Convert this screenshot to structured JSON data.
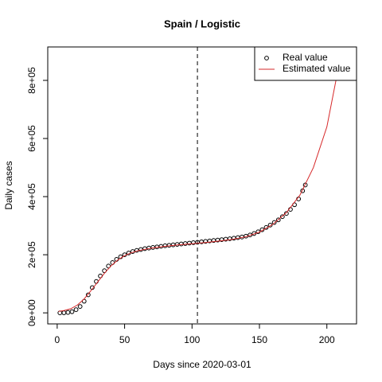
{
  "chart_data": {
    "type": "scatter",
    "title": "Spain / Logistic",
    "x_label": "Days since 2020-03-01",
    "y_label": "Daily cases",
    "xlim": [
      -7,
      222
    ],
    "ylim": [
      -38000,
      915000
    ],
    "xticks": [
      0,
      50,
      100,
      150,
      200
    ],
    "yticks": [
      {
        "value": 0,
        "label": "0e+00"
      },
      {
        "value": 200000,
        "label": "2e+05"
      },
      {
        "value": 400000,
        "label": "4e+05"
      },
      {
        "value": 600000,
        "label": "6e+05"
      },
      {
        "value": 800000,
        "label": "8e+05"
      }
    ],
    "vline": 104,
    "legend": "top-right",
    "series": [
      {
        "name": "Real value",
        "color": "#000000",
        "style": "points",
        "x": [
          2,
          5,
          8,
          11,
          14,
          17,
          20,
          23,
          26,
          29,
          32,
          35,
          38,
          41,
          44,
          47,
          50,
          53,
          56,
          59,
          62,
          65,
          68,
          71,
          74,
          77,
          80,
          83,
          86,
          89,
          92,
          95,
          98,
          101,
          104,
          107,
          110,
          113,
          116,
          119,
          122,
          125,
          128,
          131,
          134,
          137,
          140,
          143,
          146,
          149,
          152,
          155,
          158,
          161,
          164,
          167,
          170,
          173,
          176,
          179,
          182,
          184
        ],
        "values": [
          0,
          300,
          1500,
          4000,
          11000,
          22000,
          40000,
          62000,
          87000,
          108000,
          127000,
          145000,
          161000,
          173000,
          184000,
          193000,
          200000,
          206000,
          211000,
          215000,
          218000,
          221000,
          223000,
          225000,
          227000,
          229000,
          231000,
          232500,
          234000,
          235500,
          237000,
          238500,
          240000,
          241500,
          243000,
          244500,
          246000,
          247500,
          249000,
          250500,
          252000,
          253500,
          255000,
          257000,
          259000,
          261000,
          264000,
          268000,
          273000,
          279000,
          286000,
          294000,
          302000,
          311000,
          320000,
          331000,
          342000,
          356000,
          372000,
          392000,
          420000,
          440000
        ]
      },
      {
        "name": "Estimated value",
        "color": "#d62728",
        "style": "line",
        "x": [
          1,
          5,
          10,
          15,
          20,
          25,
          30,
          35,
          40,
          45,
          50,
          55,
          60,
          70,
          80,
          90,
          100,
          110,
          120,
          130,
          140,
          150,
          160,
          170,
          180,
          190,
          200,
          208
        ],
        "values": [
          5000,
          8000,
          14000,
          27000,
          48000,
          76000,
          106000,
          136000,
          162000,
          182000,
          197000,
          207000,
          214000,
          223000,
          229000,
          234000,
          238000,
          242000,
          247000,
          253000,
          262000,
          278000,
          305000,
          345000,
          405000,
          500000,
          640000,
          830000
        ]
      }
    ]
  }
}
